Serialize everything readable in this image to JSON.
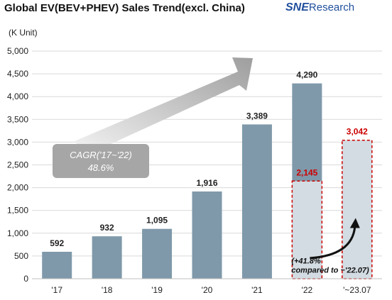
{
  "title": "Global EV(BEV+PHEV)  Sales Trend(excl. China)",
  "logo": {
    "brand": "SNE",
    "suffix": "Research"
  },
  "colors": {
    "bar": "#7f99aa",
    "partial_bar": "#d3dce2",
    "highlight": "#cc0000",
    "arrow": "#b0b0b0",
    "text": "#222222"
  },
  "chart_data": {
    "type": "bar",
    "unit_label": "(K Unit)",
    "categories": [
      "'17",
      "'18",
      "'19",
      "'20",
      "'21",
      "'22",
      "'~23.07"
    ],
    "values": [
      592,
      932,
      1095,
      1916,
      3389,
      4290,
      3042
    ],
    "data_labels": [
      "592",
      "932",
      "1,095",
      "1,916",
      "3,389",
      "4,290",
      "3,042"
    ],
    "comparison": {
      "category": "'22",
      "value": 2145,
      "label": "2,145",
      "note_line1": "(+41.8%",
      "note_line2": "compared to ~'22.07)"
    },
    "cagr": {
      "line1": "CAGR('17~'22)",
      "line2": "48.6%"
    },
    "ylim": [
      0,
      5000
    ],
    "yticks": [
      0,
      500,
      1000,
      1500,
      2000,
      2500,
      3000,
      3500,
      4000,
      4500,
      5000
    ],
    "ytick_labels": [
      "0",
      "500",
      "1,000",
      "1,500",
      "2,000",
      "2,500",
      "3,000",
      "3,500",
      "4,000",
      "4,500",
      "5,000"
    ],
    "grid": true,
    "legend": "none"
  }
}
